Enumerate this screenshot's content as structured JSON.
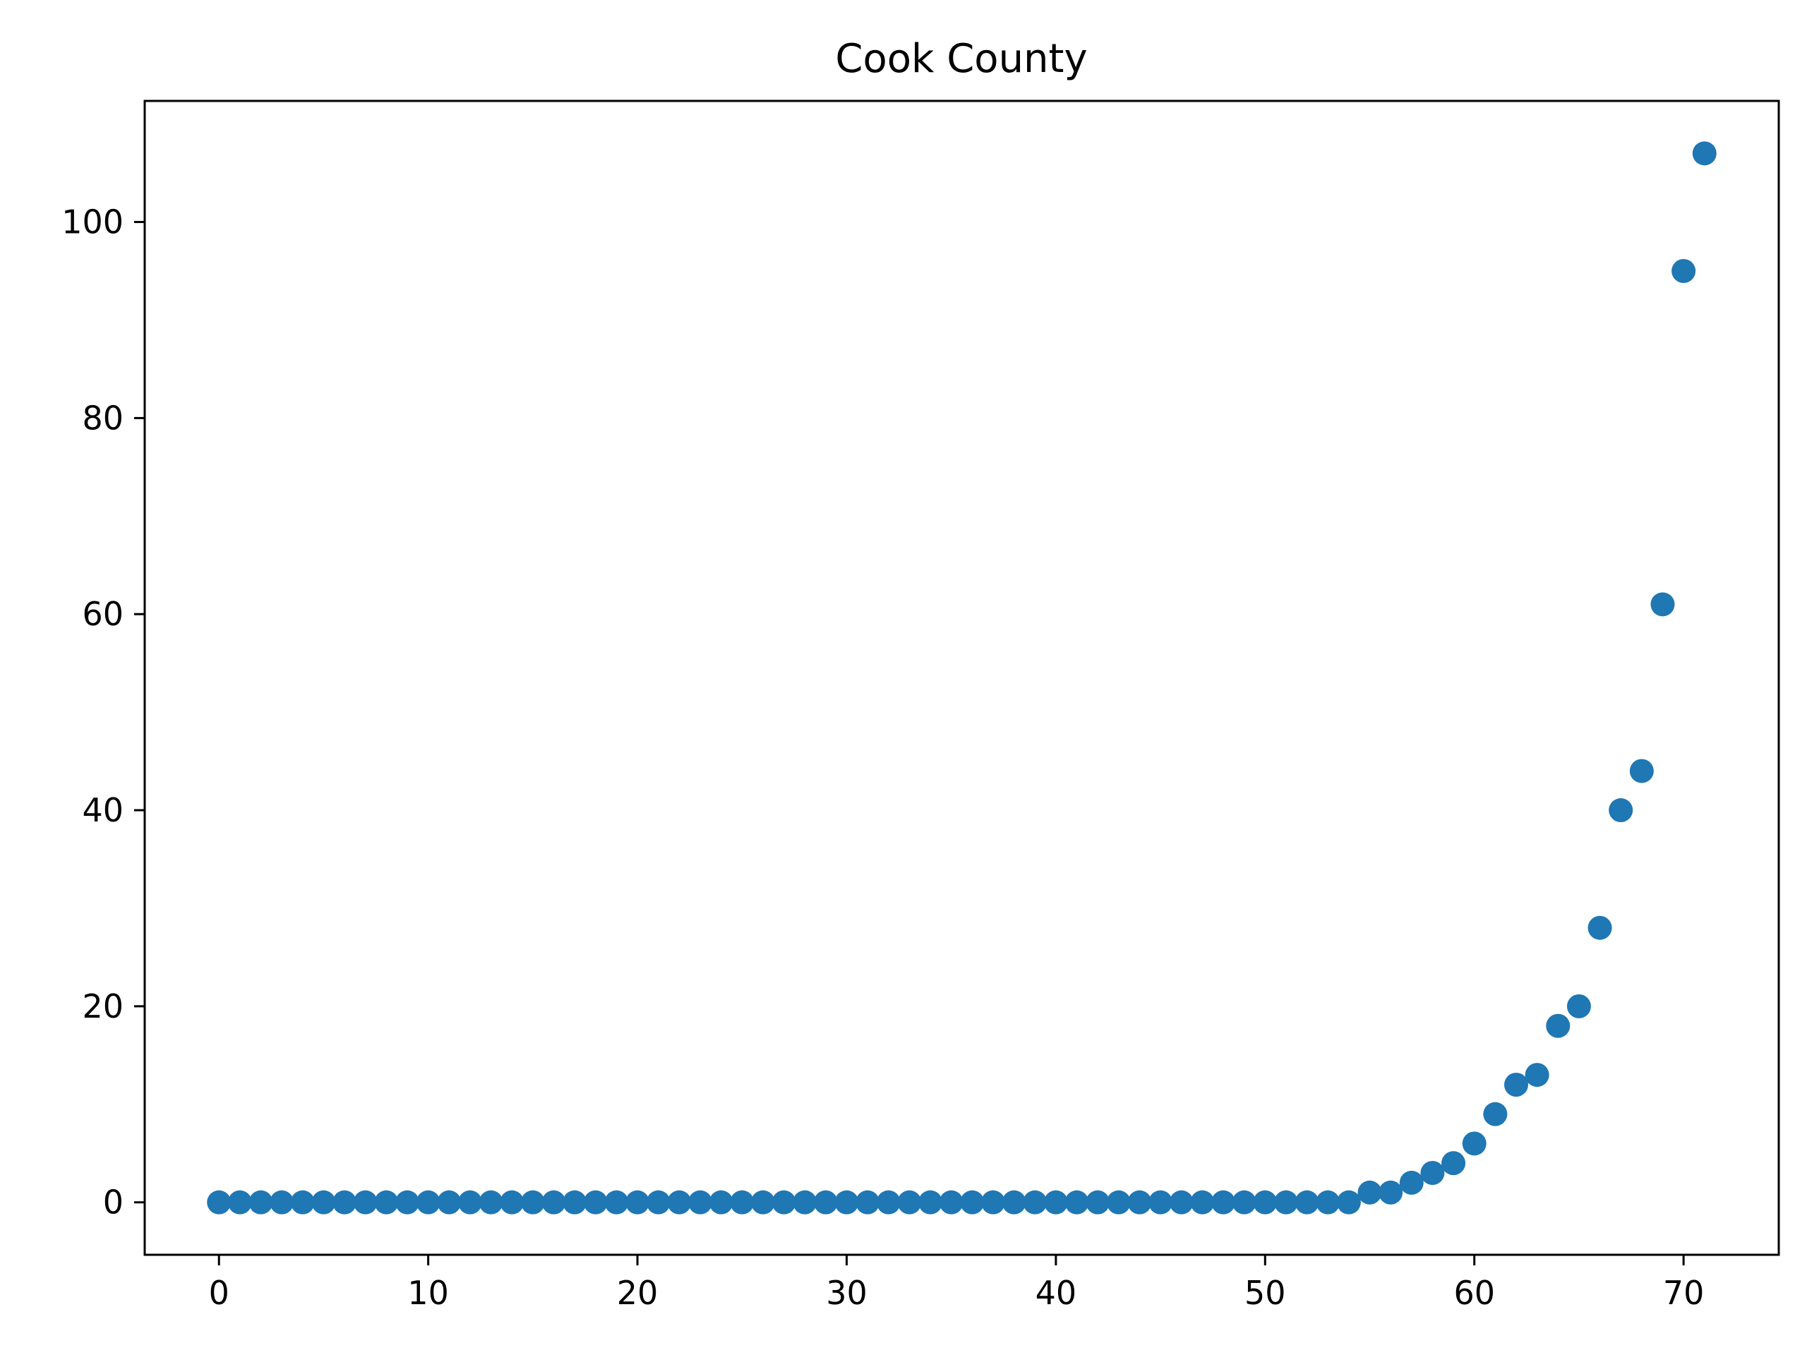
{
  "chart_data": {
    "type": "scatter",
    "title": "Cook County",
    "xlabel": "",
    "ylabel": "",
    "xlim": [
      -3.55,
      74.55
    ],
    "ylim": [
      -5.35,
      112.35
    ],
    "xticks": [
      0,
      10,
      20,
      30,
      40,
      50,
      60,
      70
    ],
    "yticks": [
      0,
      20,
      40,
      60,
      80,
      100
    ],
    "grid": false,
    "marker_color": "#1f77b4",
    "x": [
      0,
      1,
      2,
      3,
      4,
      5,
      6,
      7,
      8,
      9,
      10,
      11,
      12,
      13,
      14,
      15,
      16,
      17,
      18,
      19,
      20,
      21,
      22,
      23,
      24,
      25,
      26,
      27,
      28,
      29,
      30,
      31,
      32,
      33,
      34,
      35,
      36,
      37,
      38,
      39,
      40,
      41,
      42,
      43,
      44,
      45,
      46,
      47,
      48,
      49,
      50,
      51,
      52,
      53,
      54,
      55,
      56,
      57,
      58,
      59,
      60,
      61,
      62,
      63,
      64,
      65,
      66,
      67,
      68,
      69,
      70,
      71
    ],
    "y": [
      0,
      0,
      0,
      0,
      0,
      0,
      0,
      0,
      0,
      0,
      0,
      0,
      0,
      0,
      0,
      0,
      0,
      0,
      0,
      0,
      0,
      0,
      0,
      0,
      0,
      0,
      0,
      0,
      0,
      0,
      0,
      0,
      0,
      0,
      0,
      0,
      0,
      0,
      0,
      0,
      0,
      0,
      0,
      0,
      0,
      0,
      0,
      0,
      0,
      0,
      0,
      0,
      0,
      0,
      0,
      1,
      1,
      2,
      3,
      4,
      6,
      9,
      12,
      13,
      18,
      20,
      28,
      40,
      44,
      61,
      95,
      107
    ]
  }
}
